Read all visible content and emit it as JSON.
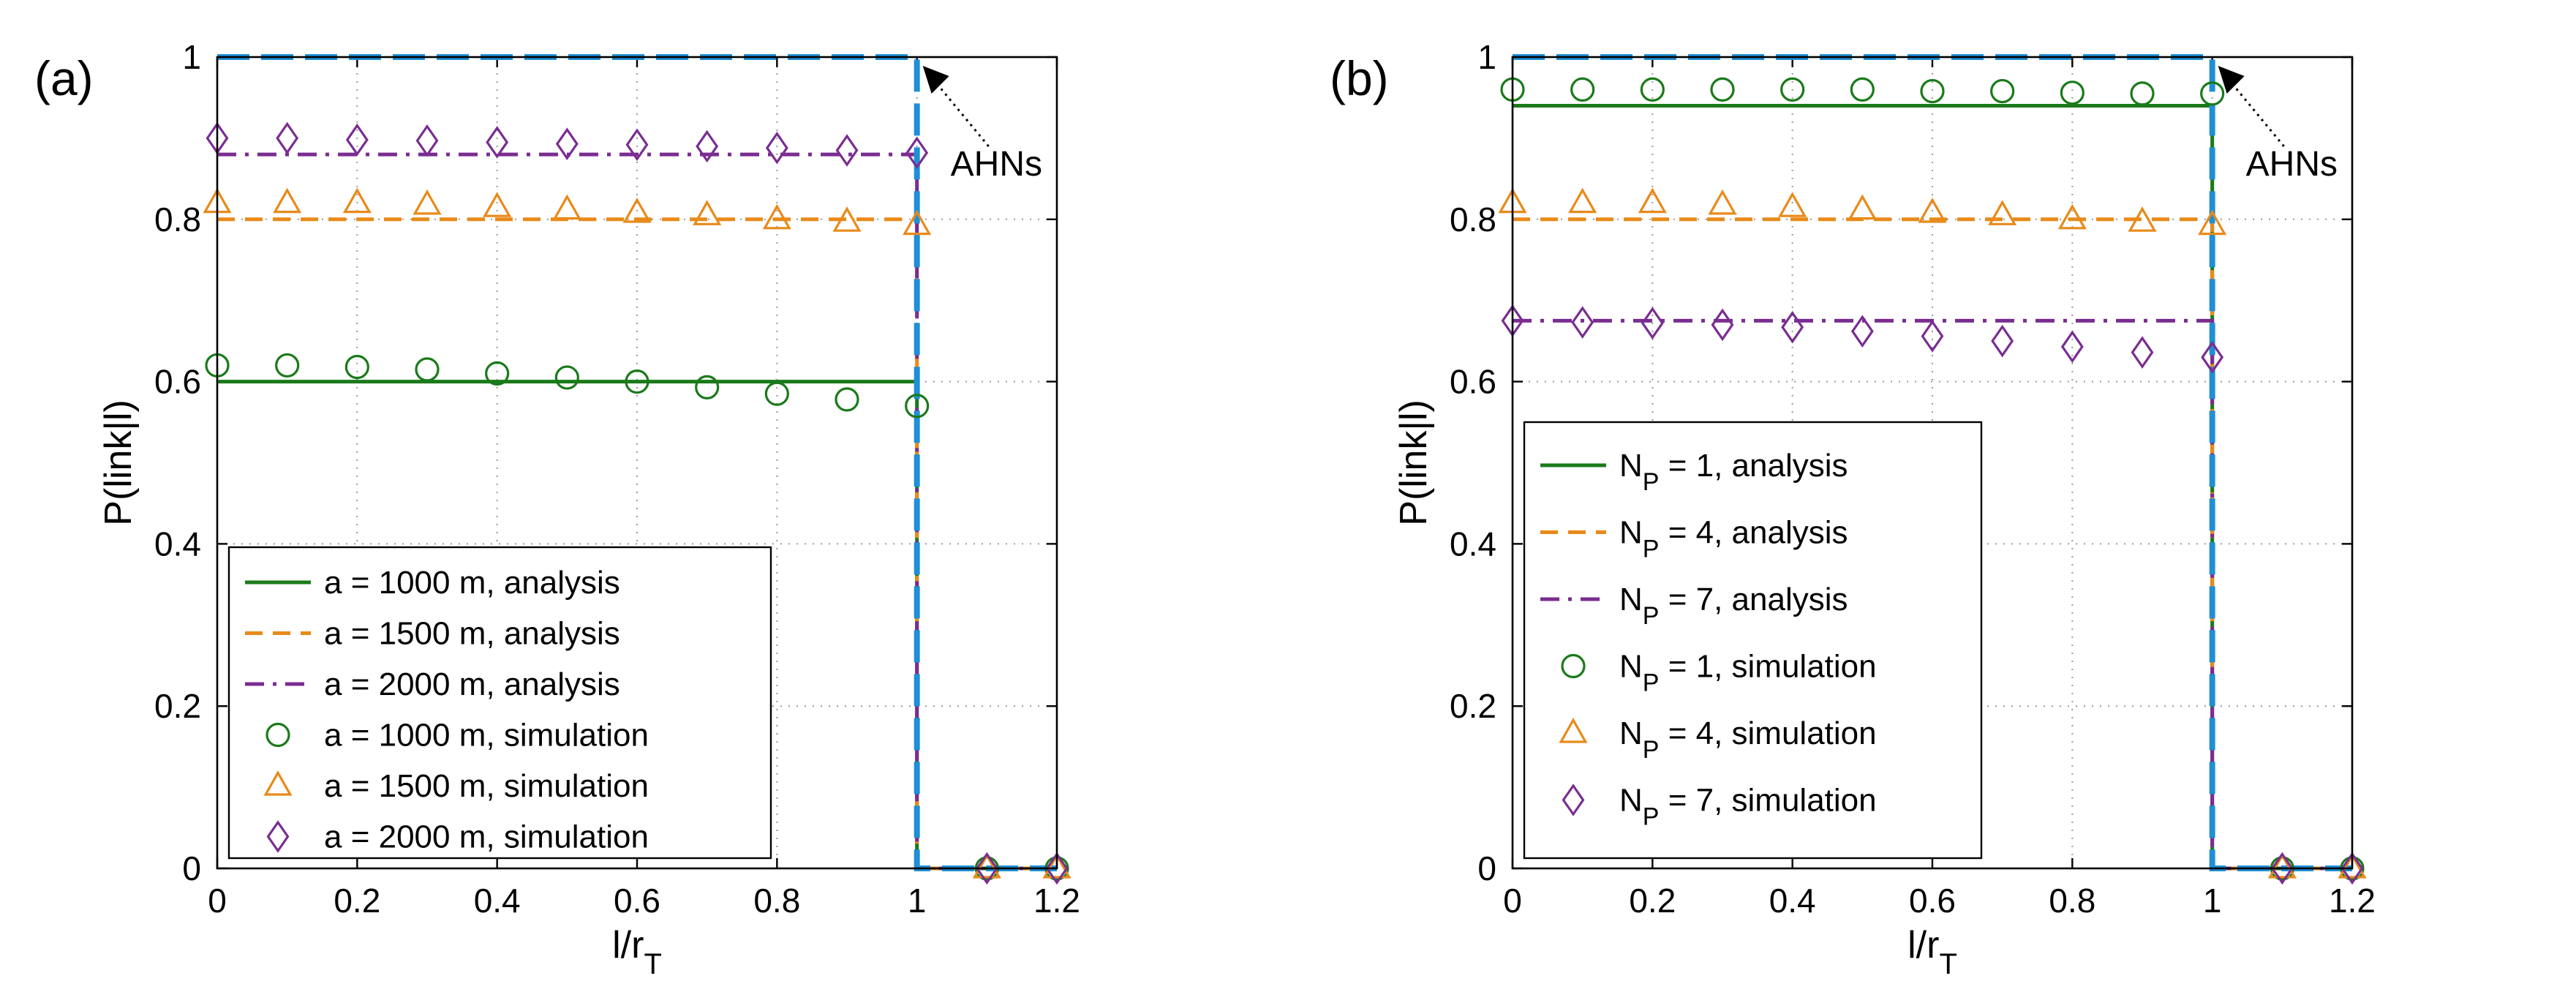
{
  "chart_data": [
    {
      "type": "line",
      "panel_label": "(a)",
      "xlabel": "l/r",
      "xlabel_sub": "T",
      "ylabel": "P(link|l)",
      "xlim": [
        0,
        1.2
      ],
      "ylim": [
        0,
        1
      ],
      "x_ticks": [
        "0",
        "0.2",
        "0.4",
        "0.6",
        "0.8",
        "1",
        "1.2"
      ],
      "y_ticks": [
        "0",
        "0.2",
        "0.4",
        "0.6",
        "0.8",
        "1"
      ],
      "grid": true,
      "legend_location": "lower-left",
      "annotation": {
        "text": "AHNs",
        "target": [
          1.0,
          1.0
        ]
      },
      "ahn_series": {
        "color": "#1f8fd6",
        "x": [
          0,
          1,
          1,
          1.2
        ],
        "y": [
          1,
          1,
          0,
          0
        ]
      },
      "series": [
        {
          "name": "a = 1000 m, analysis",
          "kind": "line",
          "style": "solid",
          "color": "#1a7a1a",
          "x": [
            0,
            1,
            1,
            1.2
          ],
          "y": [
            0.6,
            0.6,
            0,
            0
          ]
        },
        {
          "name": "a = 1500 m, analysis",
          "kind": "line",
          "style": "dashed",
          "color": "#e88a1a",
          "x": [
            0,
            1,
            1,
            1.2
          ],
          "y": [
            0.8,
            0.8,
            0,
            0
          ]
        },
        {
          "name": "a = 2000 m, analysis",
          "kind": "line",
          "style": "dashdot",
          "color": "#7a2d91",
          "x": [
            0,
            1,
            1,
            1.2
          ],
          "y": [
            0.88,
            0.88,
            0,
            0
          ]
        },
        {
          "name": "a = 1000 m, simulation",
          "kind": "marker",
          "marker": "circle",
          "color": "#1a7a1a",
          "x": [
            0,
            0.1,
            0.2,
            0.3,
            0.4,
            0.5,
            0.6,
            0.7,
            0.8,
            0.9,
            1.0,
            1.1,
            1.2
          ],
          "y": [
            0.62,
            0.62,
            0.618,
            0.615,
            0.61,
            0.605,
            0.6,
            0.593,
            0.585,
            0.578,
            0.57,
            0,
            0
          ]
        },
        {
          "name": "a = 1500 m, simulation",
          "kind": "marker",
          "marker": "triangle",
          "color": "#e88a1a",
          "x": [
            0,
            0.1,
            0.2,
            0.3,
            0.4,
            0.5,
            0.6,
            0.7,
            0.8,
            0.9,
            1.0,
            1.1,
            1.2
          ],
          "y": [
            0.82,
            0.82,
            0.82,
            0.818,
            0.815,
            0.812,
            0.808,
            0.805,
            0.8,
            0.797,
            0.793,
            0,
            0
          ]
        },
        {
          "name": "a = 2000 m, simulation",
          "kind": "marker",
          "marker": "diamond",
          "color": "#7a2d91",
          "x": [
            0,
            0.1,
            0.2,
            0.3,
            0.4,
            0.5,
            0.6,
            0.7,
            0.8,
            0.9,
            1.0,
            1.1,
            1.2
          ],
          "y": [
            0.9,
            0.9,
            0.898,
            0.897,
            0.895,
            0.893,
            0.892,
            0.89,
            0.888,
            0.885,
            0.882,
            0,
            0
          ]
        }
      ]
    },
    {
      "type": "line",
      "panel_label": "(b)",
      "xlabel": "l/r",
      "xlabel_sub": "T",
      "ylabel": "P(link|l)",
      "xlim": [
        0,
        1.2
      ],
      "ylim": [
        0,
        1
      ],
      "x_ticks": [
        "0",
        "0.2",
        "0.4",
        "0.6",
        "0.8",
        "1",
        "1.2"
      ],
      "y_ticks": [
        "0",
        "0.2",
        "0.4",
        "0.6",
        "0.8",
        "1"
      ],
      "grid": true,
      "legend_location": "lower-left",
      "annotation": {
        "text": "AHNs",
        "target": [
          1.0,
          1.0
        ]
      },
      "ahn_series": {
        "color": "#1f8fd6",
        "x": [
          0,
          1,
          1,
          1.2
        ],
        "y": [
          1,
          1,
          0,
          0
        ]
      },
      "series": [
        {
          "name": "N",
          "sub": "P",
          "rest": " = 1, analysis",
          "kind": "line",
          "style": "solid",
          "color": "#1a7a1a",
          "x": [
            0,
            1,
            1,
            1.2
          ],
          "y": [
            0.94,
            0.94,
            0,
            0
          ]
        },
        {
          "name": "N",
          "sub": "P",
          "rest": " = 4, analysis",
          "kind": "line",
          "style": "dashed",
          "color": "#e88a1a",
          "x": [
            0,
            1,
            1,
            1.2
          ],
          "y": [
            0.8,
            0.8,
            0,
            0
          ]
        },
        {
          "name": "N",
          "sub": "P",
          "rest": " = 7, analysis",
          "kind": "line",
          "style": "dashdot",
          "color": "#7a2d91",
          "x": [
            0,
            1,
            1,
            1.2
          ],
          "y": [
            0.675,
            0.675,
            0,
            0
          ]
        },
        {
          "name": "N",
          "sub": "P",
          "rest": " = 1, simulation",
          "kind": "marker",
          "marker": "circle",
          "color": "#1a7a1a",
          "x": [
            0,
            0.1,
            0.2,
            0.3,
            0.4,
            0.5,
            0.6,
            0.7,
            0.8,
            0.9,
            1.0,
            1.1,
            1.2
          ],
          "y": [
            0.96,
            0.96,
            0.96,
            0.96,
            0.96,
            0.96,
            0.958,
            0.958,
            0.956,
            0.955,
            0.955,
            0,
            0
          ]
        },
        {
          "name": "N",
          "sub": "P",
          "rest": " = 4, simulation",
          "kind": "marker",
          "marker": "triangle",
          "color": "#e88a1a",
          "x": [
            0,
            0.1,
            0.2,
            0.3,
            0.4,
            0.5,
            0.6,
            0.7,
            0.8,
            0.9,
            1.0,
            1.1,
            1.2
          ],
          "y": [
            0.82,
            0.82,
            0.82,
            0.818,
            0.815,
            0.812,
            0.808,
            0.805,
            0.8,
            0.797,
            0.793,
            0,
            0
          ]
        },
        {
          "name": "N",
          "sub": "P",
          "rest": " = 7, simulation",
          "kind": "marker",
          "marker": "diamond",
          "color": "#7a2d91",
          "x": [
            0,
            0.1,
            0.2,
            0.3,
            0.4,
            0.5,
            0.6,
            0.7,
            0.8,
            0.9,
            1.0,
            1.1,
            1.2
          ],
          "y": [
            0.675,
            0.673,
            0.672,
            0.67,
            0.667,
            0.662,
            0.656,
            0.65,
            0.643,
            0.636,
            0.63,
            0,
            0
          ]
        }
      ]
    }
  ]
}
